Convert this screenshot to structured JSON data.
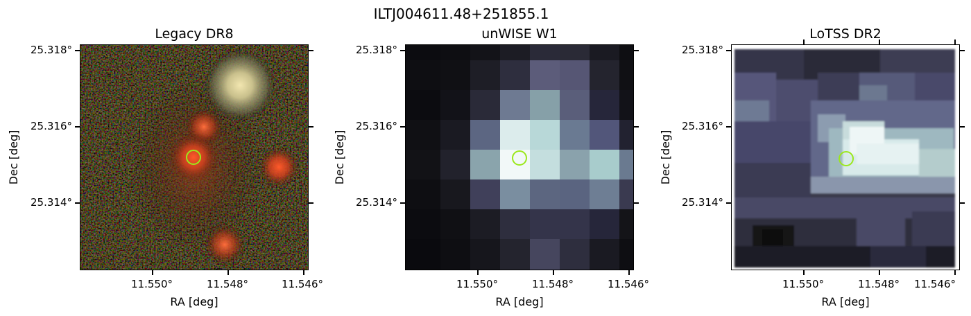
{
  "figure_title": "ILTJ004611.48+251855.1",
  "panels": [
    {
      "title": "Legacy DR8",
      "ytick_labels": [
        "25.318°",
        "25.316°",
        "25.314°"
      ],
      "xtick_labels": [
        "11.550°",
        "11.548°",
        "11.546°"
      ],
      "xlabel": "RA [deg]",
      "ylabel": "Dec [deg]"
    },
    {
      "title": "unWISE W1",
      "ytick_labels": [
        "25.318°",
        "25.316°",
        "25.314°"
      ],
      "xtick_labels": [
        "11.550°",
        "11.548°",
        "11.546°"
      ],
      "xlabel": "RA [deg]",
      "ylabel": "Dec [deg]"
    },
    {
      "title": "LoTSS DR2",
      "ytick_labels": [
        "25.318°",
        "25.316°",
        "25.314°"
      ],
      "xtick_labels": [
        "11.550°",
        "11.548°",
        "11.546°"
      ],
      "xlabel": "RA [deg]",
      "ylabel": "Dec [deg]"
    }
  ],
  "marker": {
    "shape": "circle",
    "color": "#9be81c"
  },
  "colors": {
    "legacy_bg": "#120c0a",
    "unwise_peak": "#dfeeee",
    "lotss_peak": "#e8f4f2"
  }
}
